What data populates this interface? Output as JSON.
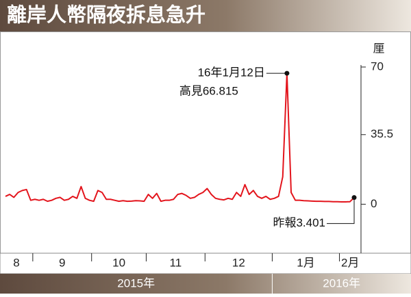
{
  "chart_data": {
    "type": "line",
    "title": "離岸人幣隔夜拆息急升",
    "unit": "厘",
    "categories": [
      "8",
      null,
      null,
      null,
      null,
      null,
      null,
      "9",
      null,
      null,
      null,
      null,
      null,
      null,
      null,
      null,
      null,
      null,
      null,
      null,
      null,
      "10",
      null,
      null,
      null,
      null,
      null,
      null,
      null,
      null,
      null,
      null,
      null,
      null,
      "11",
      null,
      null,
      null,
      null,
      null,
      null,
      null,
      null,
      null,
      null,
      null,
      null,
      null,
      "12",
      null,
      null,
      null,
      null,
      null,
      null,
      null,
      null,
      null,
      null,
      null,
      null,
      null,
      null,
      null,
      "1月",
      null,
      null,
      null,
      null,
      null,
      null,
      null,
      null,
      null,
      null,
      null,
      null,
      null,
      null,
      null,
      "2月",
      null,
      null,
      null
    ],
    "values": [
      4,
      5,
      3.5,
      6,
      7,
      7.5,
      2,
      2.5,
      2,
      2.5,
      1.5,
      2,
      3,
      3.5,
      2,
      2.5,
      4,
      3,
      9,
      3,
      2,
      1.5,
      7,
      6,
      2.5,
      2.5,
      2,
      1.5,
      1.8,
      1.5,
      1.6,
      1.8,
      1.7,
      1.5,
      5,
      3,
      5.5,
      1.5,
      2,
      2,
      2.5,
      5,
      5.5,
      4.5,
      3,
      3.5,
      5,
      6,
      8,
      5,
      3,
      2.5,
      2.2,
      3,
      2.5,
      6,
      4,
      10,
      5,
      7,
      4,
      3,
      4,
      2.5,
      3,
      4,
      14,
      66.815,
      6,
      2,
      2,
      1.8,
      1.7,
      1.6,
      1.5,
      1.5,
      1.4,
      1.4,
      1.3,
      1.3,
      1.2,
      1.2,
      1.3,
      3.401
    ],
    "color": "#e3141c",
    "ylim": [
      -25,
      85
    ],
    "yticks": [
      0,
      35.5,
      70
    ],
    "years": [
      "2015年",
      "2016年"
    ],
    "annotations": [
      "16年1月12日",
      "高見66.815",
      "昨報3.401"
    ]
  }
}
